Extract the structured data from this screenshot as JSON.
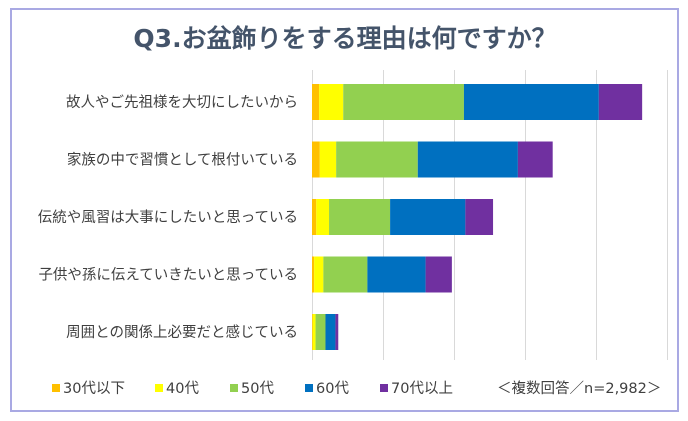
{
  "chart_data": {
    "type": "bar",
    "orientation": "horizontal",
    "stacked": true,
    "title": "Q3.お盆飾りをする理由は何ですか？",
    "categories": [
      "故人やご先祖様を大切にしたいから",
      "家族の中で習慣として根付いている",
      "伝統や風習は大事にしたいと思っている",
      "子供や孫に伝えていきたいと思っている",
      "周囲との関係上必要だと感じている"
    ],
    "series": [
      {
        "name": "30代以下",
        "color": "#FFC000",
        "values": [
          50,
          55,
          30,
          15,
          5
        ]
      },
      {
        "name": "40代",
        "color": "#FFFF00",
        "values": [
          170,
          115,
          90,
          65,
          20
        ]
      },
      {
        "name": "50代",
        "color": "#92D050",
        "values": [
          850,
          575,
          430,
          310,
          70
        ]
      },
      {
        "name": "60代",
        "color": "#0070C0",
        "values": [
          950,
          705,
          530,
          410,
          70
        ]
      },
      {
        "name": "70代以上",
        "color": "#7030A0",
        "values": [
          305,
          245,
          195,
          185,
          20
        ]
      }
    ],
    "xlim": [
      0,
      2500
    ],
    "grid": true,
    "legend": "bottom",
    "note": "＜複数回答／n=2,982＞",
    "frame_color": "#A9A9E3"
  }
}
